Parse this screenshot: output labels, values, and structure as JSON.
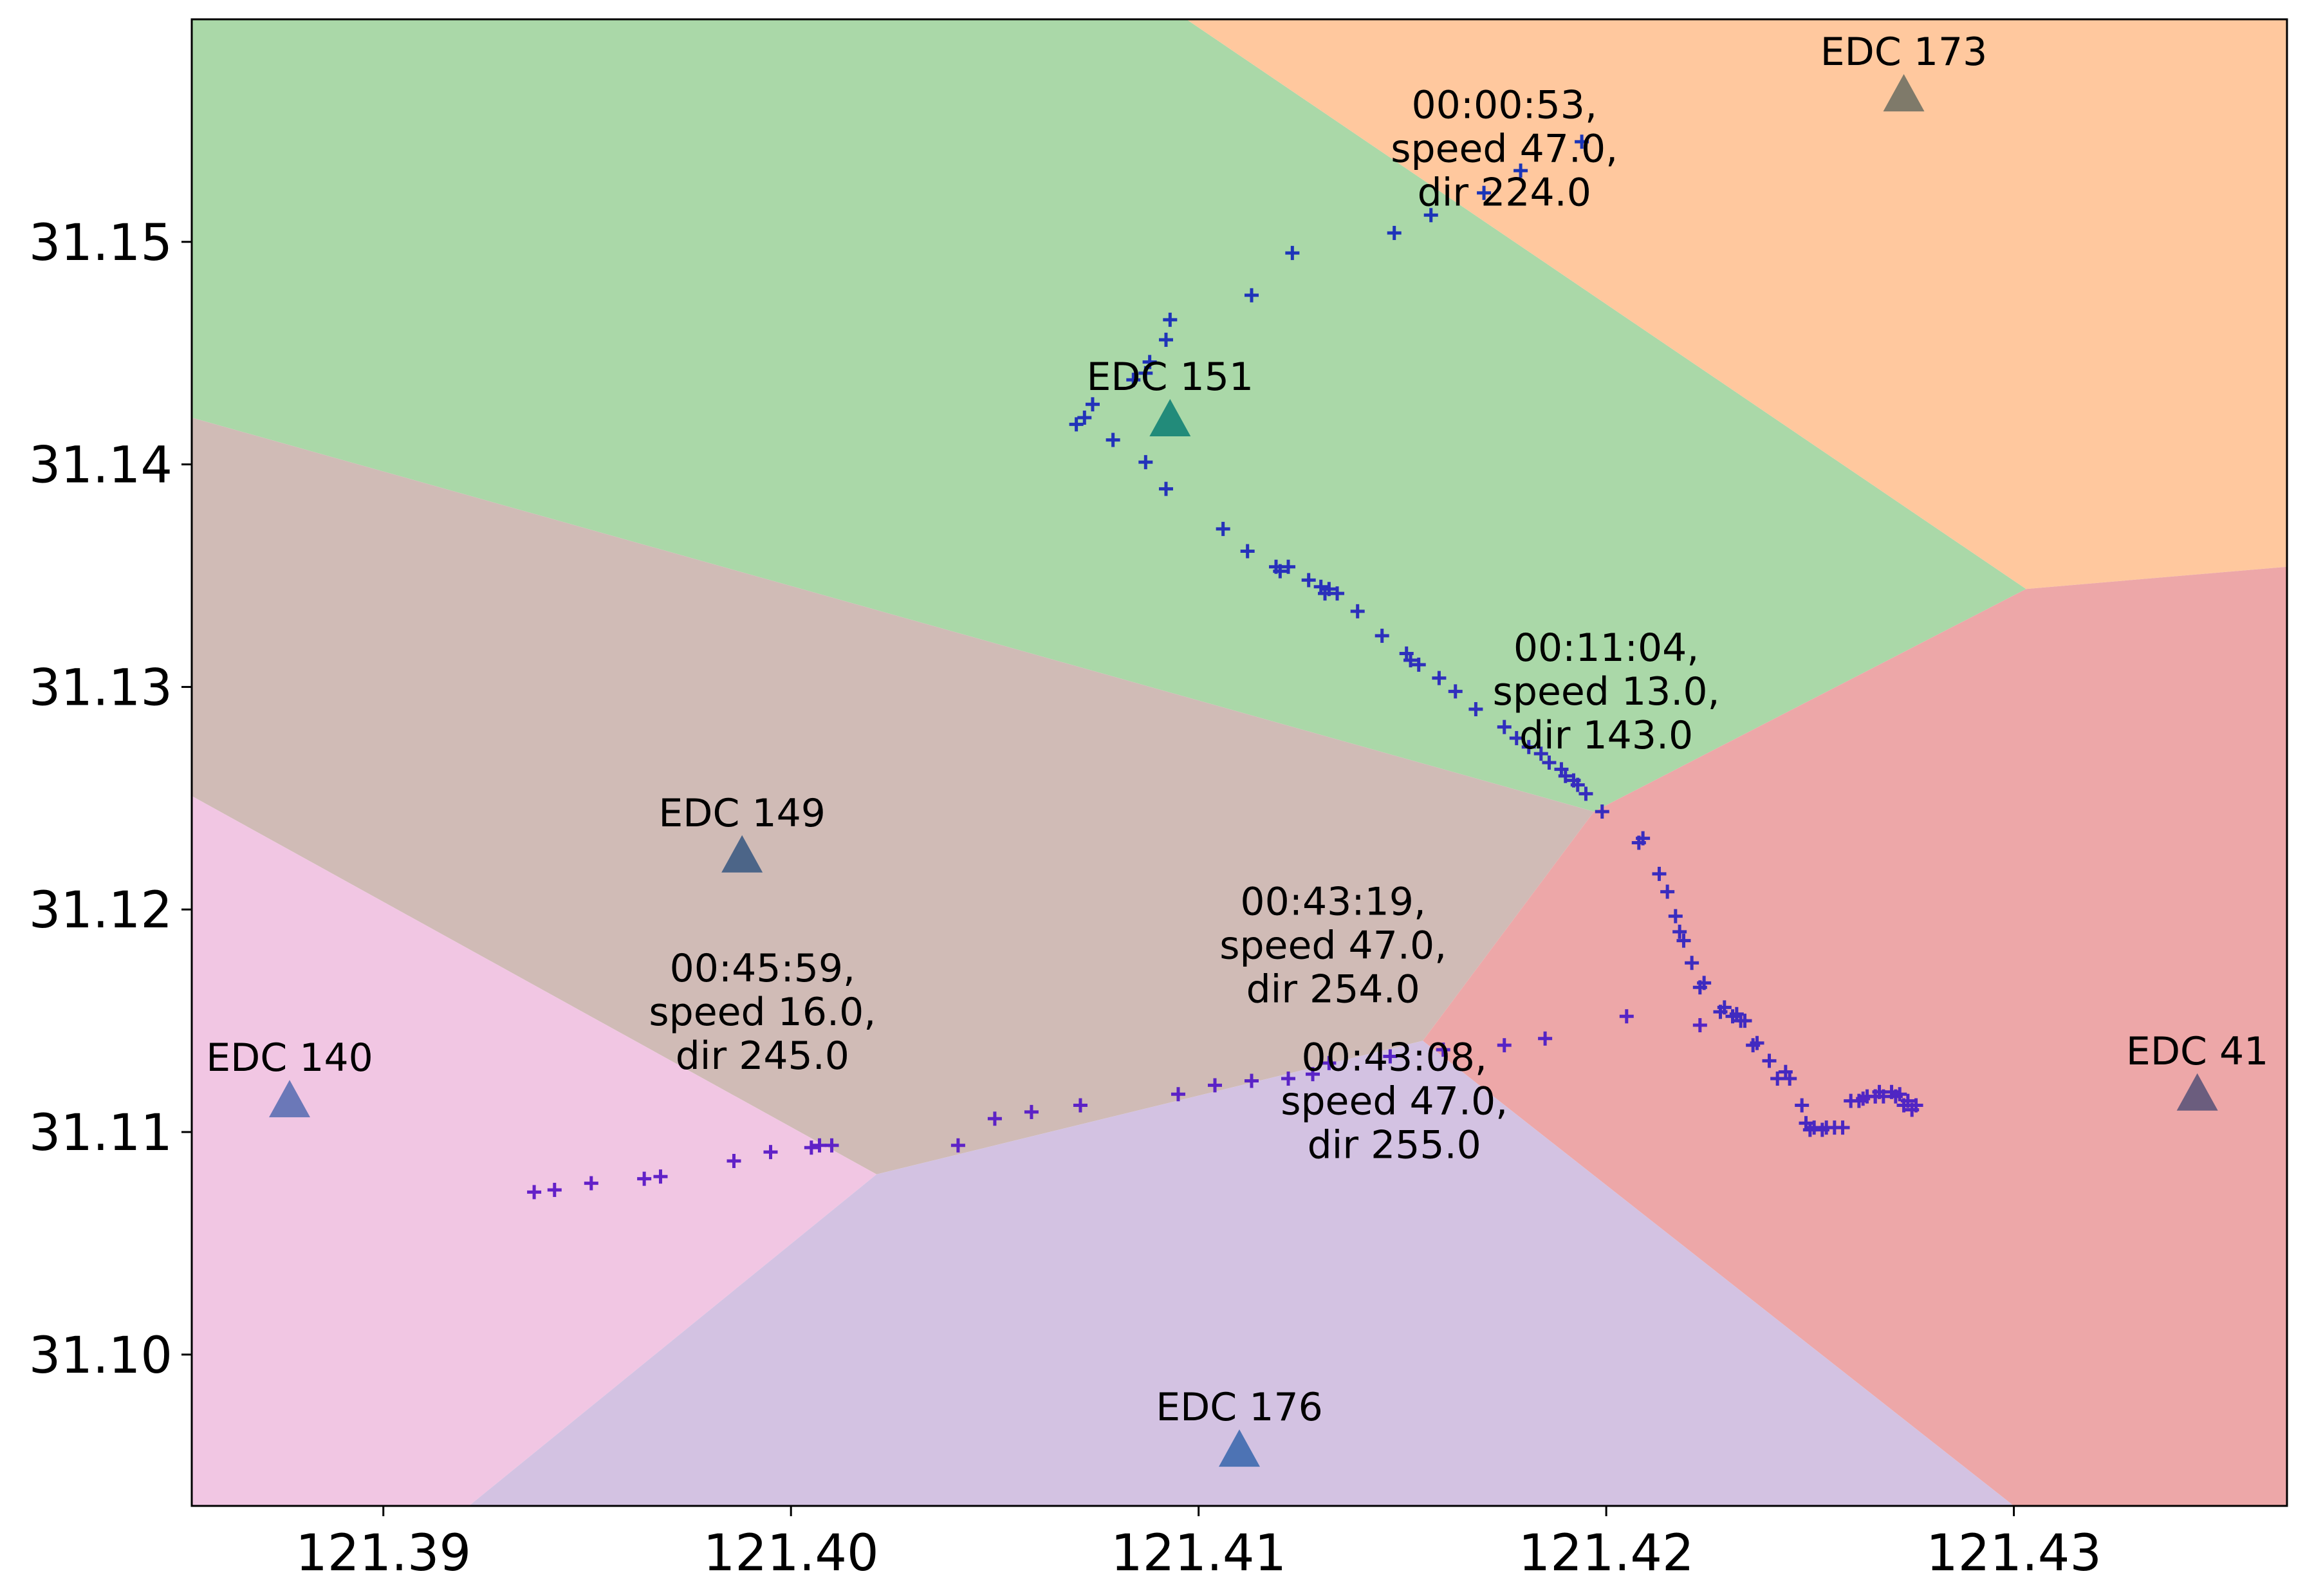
{
  "chart_data": {
    "type": "scatter",
    "title": "",
    "xlabel": "",
    "ylabel": "",
    "xlim": [
      121.3853,
      121.4367
    ],
    "ylim": [
      31.0932,
      31.16
    ],
    "grid": false,
    "x_ticks": [
      {
        "value": 121.39,
        "label": "121.39"
      },
      {
        "value": 121.4,
        "label": "121.40"
      },
      {
        "value": 121.41,
        "label": "121.41"
      },
      {
        "value": 121.42,
        "label": "121.42"
      },
      {
        "value": 121.43,
        "label": "121.43"
      }
    ],
    "y_ticks": [
      {
        "value": 31.1,
        "label": "31.10"
      },
      {
        "value": 31.11,
        "label": "31.11"
      },
      {
        "value": 31.12,
        "label": "31.12"
      },
      {
        "value": 31.13,
        "label": "31.13"
      },
      {
        "value": 31.14,
        "label": "31.14"
      },
      {
        "value": 31.15,
        "label": "31.15"
      }
    ],
    "regions": [
      {
        "station": "EDC 151",
        "color": "#aad8a8",
        "polygon": [
          [
            121.3853,
            31.16
          ],
          [
            121.4097,
            31.16
          ],
          [
            121.4303,
            31.1344
          ],
          [
            121.4197,
            31.1244
          ],
          [
            121.3853,
            31.1421
          ]
        ]
      },
      {
        "station": "EDC 173",
        "color": "#ffc89e",
        "polygon": [
          [
            121.4097,
            31.16
          ],
          [
            121.4367,
            31.16
          ],
          [
            121.4367,
            31.1354
          ],
          [
            121.4303,
            31.1344
          ]
        ]
      },
      {
        "station": "EDC 149",
        "color": "#d0bbb6",
        "polygon": [
          [
            121.3853,
            31.1421
          ],
          [
            121.4197,
            31.1244
          ],
          [
            121.4155,
            31.1141
          ],
          [
            121.4021,
            31.1081
          ],
          [
            121.3853,
            31.1251
          ]
        ]
      },
      {
        "station": "EDC 41",
        "color": "#eda7a8",
        "polygon": [
          [
            121.4303,
            31.1344
          ],
          [
            121.4367,
            31.1354
          ],
          [
            121.4367,
            31.0932
          ],
          [
            121.43,
            31.0932
          ],
          [
            121.4155,
            31.1141
          ],
          [
            121.4197,
            31.1244
          ]
        ]
      },
      {
        "station": "EDC 140",
        "color": "#f1c6e3",
        "polygon": [
          [
            121.3853,
            31.1251
          ],
          [
            121.4021,
            31.1081
          ],
          [
            121.3921,
            31.0932
          ],
          [
            121.3853,
            31.0932
          ]
        ]
      },
      {
        "station": "EDC 176",
        "color": "#d3c2e2",
        "polygon": [
          [
            121.4021,
            31.1081
          ],
          [
            121.4155,
            31.1141
          ],
          [
            121.43,
            31.0932
          ],
          [
            121.3921,
            31.0932
          ]
        ]
      }
    ],
    "stations": [
      {
        "name": "EDC 173",
        "x": 121.4273,
        "y": 31.1567,
        "color": "#7f7a6a"
      },
      {
        "name": "EDC 151",
        "x": 121.4093,
        "y": 31.1421,
        "color": "#228b7a"
      },
      {
        "name": "EDC 149",
        "x": 121.3988,
        "y": 31.1225,
        "color": "#4c6588"
      },
      {
        "name": "EDC 140",
        "x": 121.3877,
        "y": 31.1115,
        "color": "#6b78b8"
      },
      {
        "name": "EDC 41",
        "x": 121.4345,
        "y": 31.1118,
        "color": "#6b5d7e"
      },
      {
        "name": "EDC 176",
        "x": 121.411,
        "y": 31.0958,
        "color": "#4d73b4"
      }
    ],
    "series": [
      {
        "marker": "+",
        "color_start": "#1a35b8",
        "color_end": "#6420c8",
        "x": [
          121.4194,
          121.4179,
          121.417,
          121.4157,
          121.4148,
          121.4123,
          121.4113,
          121.4093,
          121.4092,
          121.4088,
          121.4087,
          121.4084,
          121.4072,
          121.407,
          121.4074,
          121.4079,
          121.4087,
          121.4092,
          121.4106,
          121.4112,
          121.4119,
          121.412,
          121.4122,
          121.4127,
          121.413,
          121.4131,
          121.4132,
          121.4134,
          121.4139,
          121.4145,
          121.4151,
          121.4152,
          121.4154,
          121.4159,
          121.4163,
          121.4168,
          121.4175,
          121.4178,
          121.4181,
          121.4184,
          121.4186,
          121.4189,
          121.419,
          121.4192,
          121.4193,
          121.4195,
          121.4199,
          121.4208,
          121.4209,
          121.4213,
          121.4215,
          121.4217,
          121.4218,
          121.4219,
          121.4221,
          121.4223,
          121.4224,
          121.4228,
          121.4229,
          121.4231,
          121.4232,
          121.4233,
          121.4234,
          121.4236,
          121.4237,
          121.424,
          121.4242,
          121.4244,
          121.4245,
          121.4248,
          121.4249,
          121.425,
          121.4251,
          121.4253,
          121.4254,
          121.4256,
          121.4258,
          121.426,
          121.4262,
          121.4264,
          121.4266,
          121.4267,
          121.4268,
          121.427,
          121.4271,
          121.4272,
          121.4273,
          121.4274,
          121.4275,
          121.4276,
          121.4266,
          121.4263,
          121.4223,
          121.4205,
          121.4185,
          121.4175,
          121.416,
          121.4147,
          121.4132,
          121.4128,
          121.4122,
          121.4113,
          121.4104,
          121.4095,
          121.4071,
          121.4059,
          121.405,
          121.4041,
          121.401,
          121.4007,
          121.4005,
          121.3995,
          121.3986,
          121.3968,
          121.3964,
          121.3951,
          121.3942,
          121.3937
        ],
        "y": [
          31.1545,
          31.1532,
          31.1522,
          31.1512,
          31.1504,
          31.1495,
          31.1476,
          31.1465,
          31.1456,
          31.1446,
          31.1441,
          31.1438,
          31.1421,
          31.1418,
          31.1427,
          31.1411,
          31.1401,
          31.1389,
          31.1371,
          31.1361,
          31.1354,
          31.1352,
          31.1354,
          31.1348,
          31.1345,
          31.1342,
          31.1344,
          31.1342,
          31.1334,
          31.1323,
          31.1315,
          31.1312,
          31.131,
          31.1304,
          31.1298,
          31.129,
          31.1282,
          31.1277,
          31.1273,
          31.127,
          31.1266,
          31.1263,
          31.126,
          31.1258,
          31.1256,
          31.1252,
          31.1244,
          31.123,
          31.1232,
          31.1216,
          31.1208,
          31.1197,
          31.119,
          31.1186,
          31.1176,
          31.1165,
          31.1167,
          31.1154,
          31.1156,
          31.1152,
          31.1153,
          31.115,
          31.115,
          31.1139,
          31.114,
          31.1132,
          31.1124,
          31.1127,
          31.1124,
          31.1112,
          31.1104,
          31.1101,
          31.1102,
          31.1101,
          31.1102,
          31.1102,
          31.1102,
          31.1114,
          31.1114,
          31.1116,
          31.1116,
          31.1118,
          31.1116,
          31.1118,
          31.1116,
          31.1117,
          31.1112,
          31.1114,
          31.111,
          31.1112,
          31.1116,
          31.1115,
          31.1148,
          31.1152,
          31.1142,
          31.1139,
          31.1137,
          31.1134,
          31.1131,
          31.1126,
          31.1124,
          31.1123,
          31.1121,
          31.1117,
          31.1112,
          31.1109,
          31.1106,
          31.1094,
          31.1094,
          31.1094,
          31.1093,
          31.1091,
          31.1087,
          31.108,
          31.1079,
          31.1077,
          31.1074,
          31.1073
        ]
      }
    ],
    "annotations": [
      {
        "lines": [
          "00:00:53,",
          "speed 47.0,",
          "dir 224.0"
        ],
        "x": 121.4175,
        "y": 31.1562
      },
      {
        "lines": [
          "00:11:04,",
          "speed 13.0,",
          "dir 143.0"
        ],
        "x": 121.42,
        "y": 31.1318
      },
      {
        "lines": [
          "00:43:19,",
          "speed 47.0,",
          "dir 254.0"
        ],
        "x": 121.4133,
        "y": 31.1204
      },
      {
        "lines": [
          "00:43:08,",
          "speed 47.0,",
          "dir 255.0"
        ],
        "x": 121.4148,
        "y": 31.1134
      },
      {
        "lines": [
          "00:45:59,",
          "speed 16.0,",
          "dir 245.0"
        ],
        "x": 121.3993,
        "y": 31.1174
      }
    ]
  }
}
